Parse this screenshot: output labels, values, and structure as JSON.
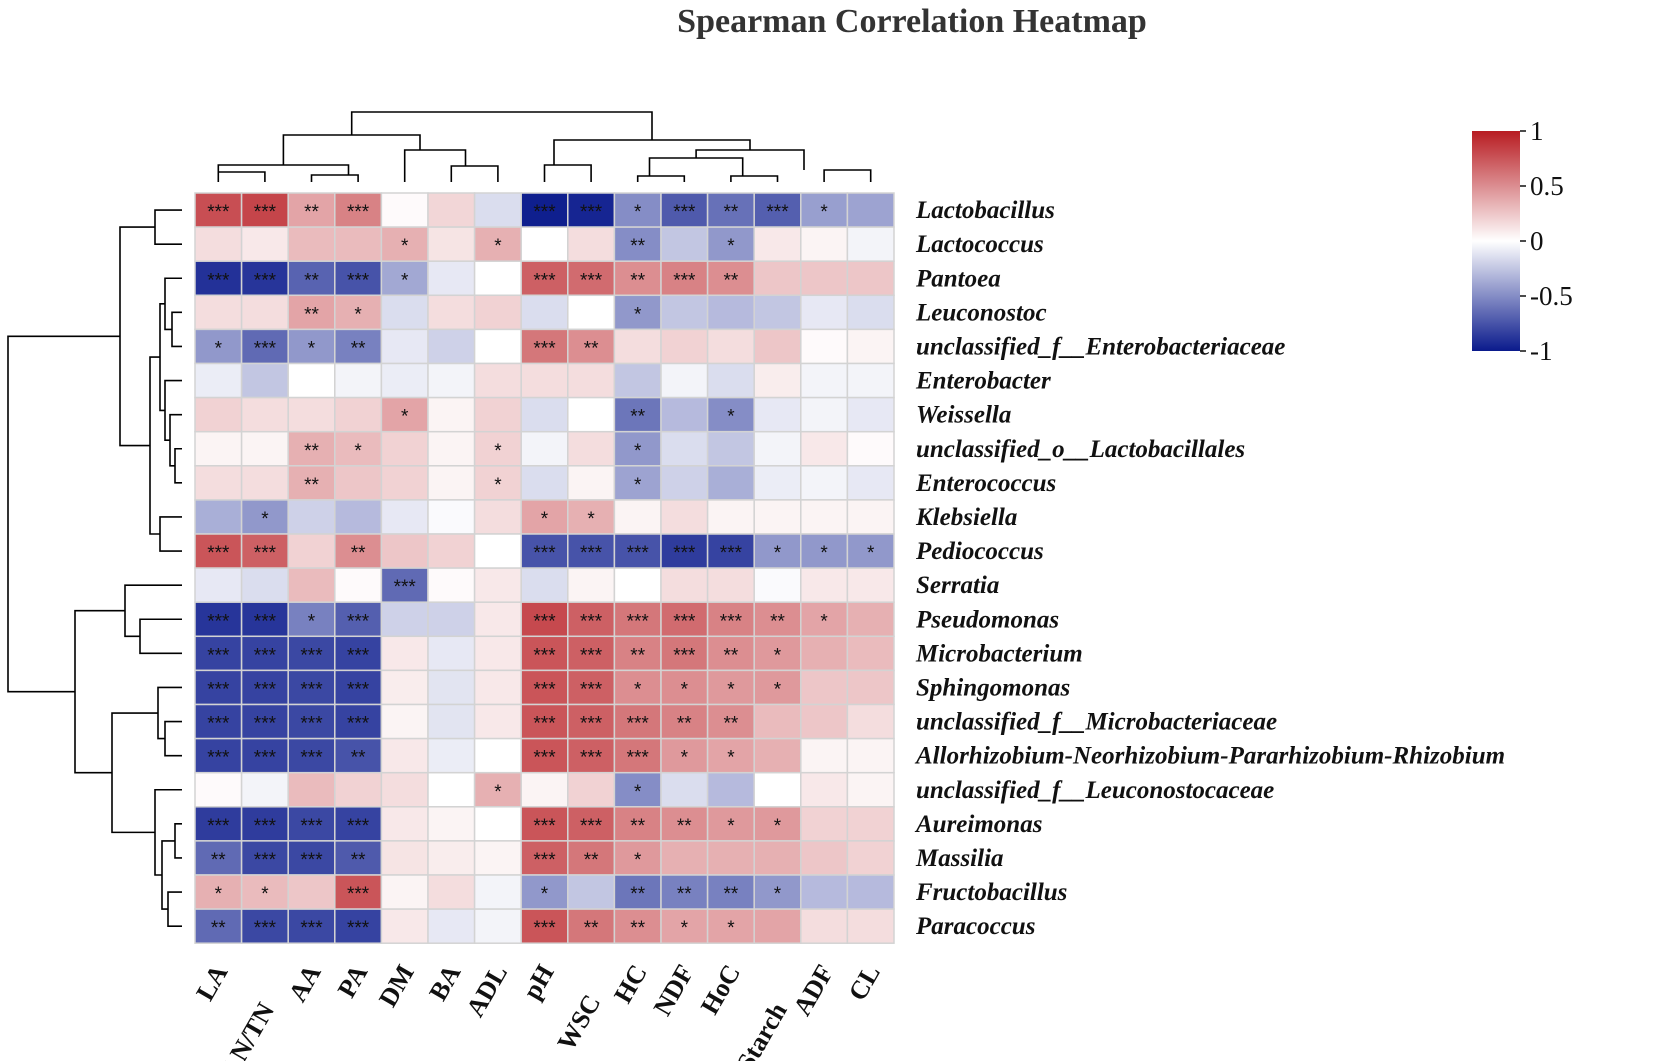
{
  "chart_data": {
    "type": "heatmap",
    "title": "Spearman Correlation Heatmap",
    "columns": [
      "LA",
      "AN/TN",
      "AA",
      "PA",
      "DM",
      "BA",
      "ADL",
      "pH",
      "WSC",
      "HC",
      "NDF",
      "HoC",
      "Starch",
      "ADF",
      "CL"
    ],
    "rows": [
      "Lactobacillus",
      "Lactococcus",
      "Pantoea",
      "Leuconostoc",
      "unclassified_f__Enterobacteriaceae",
      "Enterobacter",
      "Weissella",
      "unclassified_o__Lactobacillales",
      "Enterococcus",
      "Klebsiella",
      "Pediococcus",
      "Serratia",
      "Pseudomonas",
      "Microbacterium",
      "Sphingomonas",
      "unclassified_f__Microbacteriaceae",
      "Allorhizobium-Neorhizobium-Pararhizobium-Rhizobium",
      "unclassified_f__Leuconostocaceae",
      "Aureimonas",
      "Massilia",
      "Fructobacillus",
      "Paracoccus"
    ],
    "values": [
      [
        0.78,
        0.82,
        0.4,
        0.55,
        0.02,
        0.18,
        -0.15,
        -0.98,
        -0.95,
        -0.5,
        -0.72,
        -0.62,
        -0.7,
        -0.42,
        -0.4
      ],
      [
        0.15,
        0.1,
        0.3,
        0.3,
        0.35,
        0.12,
        0.35,
        0.0,
        0.15,
        -0.5,
        -0.25,
        -0.45,
        0.1,
        0.05,
        -0.05
      ],
      [
        -0.9,
        -0.88,
        -0.68,
        -0.75,
        -0.38,
        -0.1,
        0.0,
        0.7,
        0.65,
        0.5,
        0.55,
        0.5,
        0.25,
        0.25,
        0.25
      ],
      [
        0.15,
        0.15,
        0.4,
        0.35,
        -0.15,
        0.15,
        0.2,
        -0.15,
        0.0,
        -0.45,
        -0.25,
        -0.3,
        -0.25,
        -0.1,
        -0.15
      ],
      [
        -0.45,
        -0.65,
        -0.45,
        -0.55,
        -0.1,
        -0.2,
        0.0,
        0.6,
        0.5,
        0.15,
        0.2,
        0.15,
        0.25,
        0.02,
        0.05
      ],
      [
        -0.08,
        -0.25,
        0.0,
        -0.05,
        -0.08,
        -0.05,
        0.15,
        0.15,
        0.15,
        -0.25,
        -0.05,
        -0.15,
        0.08,
        -0.05,
        -0.05
      ],
      [
        0.2,
        0.15,
        0.15,
        0.2,
        0.4,
        0.05,
        0.2,
        -0.15,
        0.0,
        -0.6,
        -0.3,
        -0.5,
        -0.1,
        -0.05,
        -0.1
      ],
      [
        0.05,
        0.05,
        0.35,
        0.3,
        0.2,
        0.05,
        0.2,
        -0.05,
        0.15,
        -0.45,
        -0.15,
        -0.25,
        -0.05,
        0.1,
        0.02
      ],
      [
        0.15,
        0.15,
        0.35,
        0.25,
        0.2,
        0.05,
        0.2,
        -0.15,
        0.05,
        -0.4,
        -0.2,
        -0.35,
        -0.08,
        -0.05,
        -0.1
      ],
      [
        -0.35,
        -0.45,
        -0.2,
        -0.3,
        -0.1,
        -0.02,
        0.15,
        0.4,
        0.35,
        0.05,
        0.15,
        0.05,
        0.05,
        0.05,
        0.05
      ],
      [
        0.75,
        0.7,
        0.2,
        0.5,
        0.25,
        0.2,
        0.0,
        -0.75,
        -0.75,
        -0.75,
        -0.85,
        -0.82,
        -0.45,
        -0.45,
        -0.45
      ],
      [
        -0.1,
        -0.15,
        0.3,
        0.02,
        -0.65,
        0.02,
        0.1,
        -0.15,
        0.05,
        0.0,
        0.15,
        0.15,
        -0.02,
        0.1,
        0.1
      ],
      [
        -0.88,
        -0.88,
        -0.55,
        -0.7,
        -0.2,
        -0.2,
        0.1,
        0.8,
        0.7,
        0.6,
        0.65,
        0.55,
        0.5,
        0.4,
        0.35
      ],
      [
        -0.82,
        -0.82,
        -0.8,
        -0.82,
        0.1,
        -0.1,
        0.1,
        0.75,
        0.7,
        0.55,
        0.6,
        0.5,
        0.45,
        0.35,
        0.3
      ],
      [
        -0.82,
        -0.82,
        -0.8,
        -0.82,
        0.08,
        -0.12,
        0.1,
        0.75,
        0.7,
        0.5,
        0.5,
        0.45,
        0.45,
        0.25,
        0.25
      ],
      [
        -0.82,
        -0.82,
        -0.8,
        -0.82,
        0.05,
        -0.12,
        0.1,
        0.75,
        0.7,
        0.6,
        0.55,
        0.5,
        0.3,
        0.25,
        0.15
      ],
      [
        -0.82,
        -0.82,
        -0.8,
        -0.75,
        0.1,
        -0.08,
        0.0,
        0.75,
        0.7,
        0.6,
        0.45,
        0.4,
        0.35,
        0.05,
        0.05
      ],
      [
        0.02,
        -0.05,
        0.3,
        0.2,
        0.15,
        0.0,
        0.35,
        0.05,
        0.2,
        -0.5,
        -0.15,
        -0.3,
        0.0,
        0.1,
        0.05
      ],
      [
        -0.85,
        -0.85,
        -0.8,
        -0.82,
        0.1,
        0.05,
        0.0,
        0.75,
        0.7,
        0.55,
        0.5,
        0.45,
        0.45,
        0.2,
        0.2
      ],
      [
        -0.65,
        -0.8,
        -0.8,
        -0.72,
        0.12,
        0.08,
        0.05,
        0.7,
        0.6,
        0.45,
        0.35,
        0.35,
        0.35,
        0.25,
        0.2
      ],
      [
        0.35,
        0.3,
        0.25,
        0.75,
        0.05,
        0.15,
        -0.05,
        -0.45,
        -0.25,
        -0.6,
        -0.55,
        -0.55,
        -0.45,
        -0.3,
        -0.3
      ],
      [
        -0.65,
        -0.8,
        -0.8,
        -0.82,
        0.1,
        -0.1,
        -0.05,
        0.75,
        0.6,
        0.5,
        0.4,
        0.4,
        0.4,
        0.15,
        0.15
      ]
    ],
    "significance": [
      [
        "***",
        "***",
        "**",
        "***",
        "",
        "",
        "",
        "***",
        "***",
        "*",
        "***",
        "**",
        "***",
        "*",
        ""
      ],
      [
        "",
        "",
        "",
        "",
        "*",
        "",
        "*",
        "",
        "",
        "**",
        "",
        "*",
        "",
        "",
        ""
      ],
      [
        "***",
        "***",
        "**",
        "***",
        "*",
        "",
        "",
        "***",
        "***",
        "**",
        "***",
        "**",
        "",
        "",
        ""
      ],
      [
        "",
        "",
        "**",
        "*",
        "",
        "",
        "",
        "",
        "",
        "*",
        "",
        "",
        "",
        "",
        ""
      ],
      [
        "*",
        "***",
        "*",
        "**",
        "",
        "",
        "",
        "***",
        "**",
        "",
        "",
        "",
        "",
        "",
        ""
      ],
      [
        "",
        "",
        "",
        "",
        "",
        "",
        "",
        "",
        "",
        "",
        "",
        "",
        "",
        "",
        ""
      ],
      [
        "",
        "",
        "",
        "",
        "*",
        "",
        "",
        "",
        "",
        "**",
        "",
        "*",
        "",
        "",
        ""
      ],
      [
        "",
        "",
        "**",
        "*",
        "",
        "",
        "*",
        "",
        "",
        "*",
        "",
        "",
        "",
        "",
        ""
      ],
      [
        "",
        "",
        "**",
        "",
        "",
        "",
        "*",
        "",
        "",
        "*",
        "",
        "",
        "",
        "",
        ""
      ],
      [
        "",
        "*",
        "",
        "",
        "",
        "",
        "",
        "*",
        "*",
        "",
        "",
        "",
        "",
        "",
        ""
      ],
      [
        "***",
        "***",
        "",
        "**",
        "",
        "",
        "",
        "***",
        "***",
        "***",
        "***",
        "***",
        "*",
        "*",
        "*"
      ],
      [
        "",
        "",
        "",
        "",
        "***",
        "",
        "",
        "",
        "",
        "",
        "",
        "",
        "",
        "",
        ""
      ],
      [
        "***",
        "***",
        "*",
        "***",
        "",
        "",
        "",
        "***",
        "***",
        "***",
        "***",
        "***",
        "**",
        "*",
        ""
      ],
      [
        "***",
        "***",
        "***",
        "***",
        "",
        "",
        "",
        "***",
        "***",
        "**",
        "***",
        "**",
        "*",
        "",
        ""
      ],
      [
        "***",
        "***",
        "***",
        "***",
        "",
        "",
        "",
        "***",
        "***",
        "*",
        "*",
        "*",
        "*",
        "",
        ""
      ],
      [
        "***",
        "***",
        "***",
        "***",
        "",
        "",
        "",
        "***",
        "***",
        "***",
        "**",
        "**",
        "",
        "",
        ""
      ],
      [
        "***",
        "***",
        "***",
        "**",
        "",
        "",
        "",
        "***",
        "***",
        "***",
        "*",
        "*",
        "",
        "",
        ""
      ],
      [
        "",
        "",
        "",
        "",
        "",
        "",
        "*",
        "",
        "",
        "*",
        "",
        "",
        "",
        "",
        ""
      ],
      [
        "***",
        "***",
        "***",
        "***",
        "",
        "",
        "",
        "***",
        "***",
        "**",
        "**",
        "*",
        "*",
        "",
        ""
      ],
      [
        "**",
        "***",
        "***",
        "**",
        "",
        "",
        "",
        "***",
        "**",
        "*",
        "",
        "",
        "",
        "",
        ""
      ],
      [
        "*",
        "*",
        "",
        "***",
        "",
        "",
        "",
        "*",
        "",
        "**",
        "**",
        "**",
        "*",
        "",
        ""
      ],
      [
        "**",
        "***",
        "***",
        "***",
        "",
        "",
        "",
        "***",
        "**",
        "**",
        "*",
        "*",
        "",
        "",
        ""
      ]
    ],
    "legend": {
      "ticks": [
        "1",
        "0.5",
        "0",
        "-0.5",
        "-1"
      ],
      "range": [
        -1,
        1
      ],
      "colors": {
        "low": "#0a1a8c",
        "mid": "#ffffff",
        "high": "#b81c22"
      }
    },
    "dendrogram_rows": true,
    "dendrogram_columns": true
  }
}
